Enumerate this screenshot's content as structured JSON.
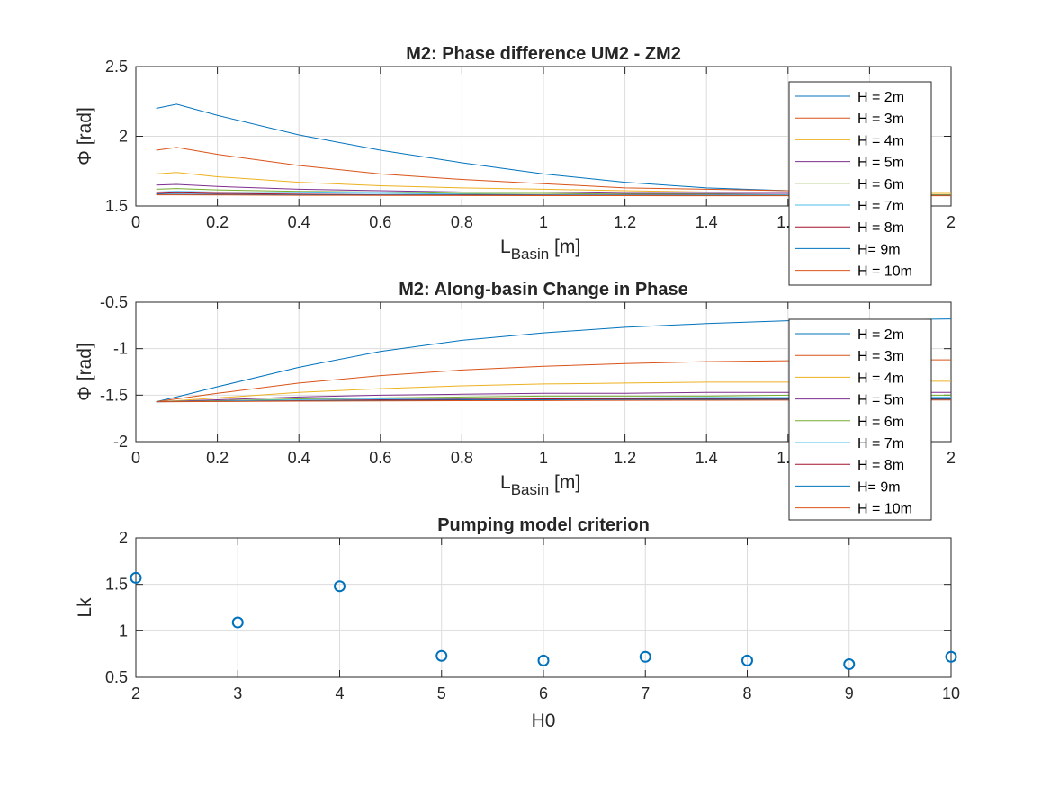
{
  "series_colors": [
    "#0072BD",
    "#D95319",
    "#EDB120",
    "#7E2F8E",
    "#77AC30",
    "#4DBEEE",
    "#A2142F",
    "#0072BD",
    "#D95319"
  ],
  "chart_data": [
    {
      "type": "line",
      "title": "M2: Phase difference UM2 - ZM2",
      "ylabel": "Φ [rad]",
      "xlabel_main": "L",
      "xlabel_sub": "Basin",
      "xlabel_tail": " [m]",
      "x_exponent_base": "10",
      "x_exponent": "4",
      "xlim": [
        0,
        2
      ],
      "ylim": [
        1.5,
        2.5
      ],
      "xticks": [
        "0",
        "0.2",
        "0.4",
        "0.6",
        "0.8",
        "1",
        "1.2",
        "1.4",
        "1.6",
        "1.8",
        "2"
      ],
      "yticks": [
        "1.5",
        "2",
        "2.5"
      ],
      "x": [
        0.05,
        0.1,
        0.2,
        0.4,
        0.6,
        0.8,
        1.0,
        1.2,
        1.4,
        1.6,
        1.8,
        2.0
      ],
      "legend_location": "right",
      "series": [
        {
          "name": "H = 2m",
          "values": [
            2.2,
            2.23,
            2.15,
            2.01,
            1.9,
            1.81,
            1.73,
            1.67,
            1.63,
            1.61,
            1.6,
            1.6
          ]
        },
        {
          "name": "H = 3m",
          "values": [
            1.9,
            1.92,
            1.87,
            1.79,
            1.73,
            1.69,
            1.66,
            1.63,
            1.62,
            1.61,
            1.6,
            1.6
          ]
        },
        {
          "name": "H = 4m",
          "values": [
            1.73,
            1.74,
            1.71,
            1.67,
            1.645,
            1.63,
            1.62,
            1.61,
            1.6,
            1.6,
            1.59,
            1.59
          ]
        },
        {
          "name": "H = 5m",
          "values": [
            1.65,
            1.655,
            1.64,
            1.62,
            1.61,
            1.6,
            1.6,
            1.59,
            1.59,
            1.59,
            1.58,
            1.58
          ]
        },
        {
          "name": "H = 6m",
          "values": [
            1.62,
            1.625,
            1.615,
            1.605,
            1.6,
            1.59,
            1.59,
            1.585,
            1.585,
            1.58,
            1.58,
            1.58
          ]
        },
        {
          "name": "H = 7m",
          "values": [
            1.6,
            1.605,
            1.6,
            1.595,
            1.59,
            1.585,
            1.58,
            1.58,
            1.58,
            1.58,
            1.575,
            1.575
          ]
        },
        {
          "name": "H = 8m",
          "values": [
            1.59,
            1.595,
            1.59,
            1.585,
            1.58,
            1.58,
            1.578,
            1.577,
            1.576,
            1.575,
            1.575,
            1.575
          ]
        },
        {
          "name": "H= 9m",
          "values": [
            1.585,
            1.585,
            1.583,
            1.58,
            1.578,
            1.577,
            1.576,
            1.575,
            1.575,
            1.574,
            1.574,
            1.574
          ]
        },
        {
          "name": "H = 10m",
          "values": [
            1.58,
            1.58,
            1.579,
            1.577,
            1.576,
            1.575,
            1.574,
            1.574,
            1.573,
            1.573,
            1.573,
            1.573
          ]
        }
      ]
    },
    {
      "type": "line",
      "title": "M2: Along-basin Change in Phase",
      "ylabel": "Φ [rad]",
      "xlabel_main": "L",
      "xlabel_sub": "Basin",
      "xlabel_tail": " [m]",
      "x_exponent_base": "10",
      "x_exponent": "4",
      "xlim": [
        0,
        2
      ],
      "ylim": [
        -2,
        -0.5
      ],
      "xticks": [
        "0",
        "0.2",
        "0.4",
        "0.6",
        "0.8",
        "1",
        "1.2",
        "1.4",
        "1.6",
        "1.8",
        "2"
      ],
      "yticks": [
        "-2",
        "-1.5",
        "-1",
        "-0.5"
      ],
      "x": [
        0.05,
        0.1,
        0.2,
        0.4,
        0.6,
        0.8,
        1.0,
        1.2,
        1.4,
        1.6,
        1.8,
        2.0
      ],
      "legend_location": "right",
      "series": [
        {
          "name": "H = 2m",
          "values": [
            -1.57,
            -1.52,
            -1.41,
            -1.2,
            -1.03,
            -0.91,
            -0.83,
            -0.77,
            -0.73,
            -0.7,
            -0.69,
            -0.68
          ]
        },
        {
          "name": "H = 3m",
          "values": [
            -1.57,
            -1.54,
            -1.48,
            -1.37,
            -1.29,
            -1.23,
            -1.19,
            -1.16,
            -1.14,
            -1.13,
            -1.12,
            -1.12
          ]
        },
        {
          "name": "H = 4m",
          "values": [
            -1.57,
            -1.56,
            -1.53,
            -1.47,
            -1.43,
            -1.4,
            -1.38,
            -1.37,
            -1.36,
            -1.36,
            -1.35,
            -1.35
          ]
        },
        {
          "name": "H = 5m",
          "values": [
            -1.57,
            -1.565,
            -1.55,
            -1.52,
            -1.5,
            -1.49,
            -1.48,
            -1.48,
            -1.47,
            -1.47,
            -1.47,
            -1.47
          ]
        },
        {
          "name": "H = 6m",
          "values": [
            -1.57,
            -1.567,
            -1.56,
            -1.54,
            -1.53,
            -1.52,
            -1.51,
            -1.51,
            -1.51,
            -1.5,
            -1.5,
            -1.5
          ]
        },
        {
          "name": "H = 7m",
          "values": [
            -1.57,
            -1.568,
            -1.563,
            -1.55,
            -1.54,
            -1.535,
            -1.53,
            -1.53,
            -1.525,
            -1.525,
            -1.52,
            -1.52
          ]
        },
        {
          "name": "H = 8m",
          "values": [
            -1.57,
            -1.569,
            -1.566,
            -1.56,
            -1.55,
            -1.545,
            -1.54,
            -1.54,
            -1.54,
            -1.535,
            -1.535,
            -1.535
          ]
        },
        {
          "name": "H= 9m",
          "values": [
            -1.57,
            -1.569,
            -1.567,
            -1.562,
            -1.557,
            -1.553,
            -1.55,
            -1.548,
            -1.546,
            -1.545,
            -1.544,
            -1.544
          ]
        },
        {
          "name": "H = 10m",
          "values": [
            -1.57,
            -1.57,
            -1.568,
            -1.565,
            -1.562,
            -1.56,
            -1.558,
            -1.556,
            -1.555,
            -1.554,
            -1.553,
            -1.553
          ]
        }
      ]
    },
    {
      "type": "scatter",
      "title": "Pumping model criterion",
      "xlabel": "H0",
      "ylabel": "Lk",
      "xlim": [
        2,
        10
      ],
      "ylim": [
        0.5,
        2
      ],
      "xticks": [
        "2",
        "3",
        "4",
        "5",
        "6",
        "7",
        "8",
        "9",
        "10"
      ],
      "yticks": [
        "0.5",
        "1",
        "1.5",
        "2"
      ],
      "x": [
        2,
        3,
        4,
        5,
        6,
        7,
        8,
        9,
        10
      ],
      "y": [
        1.57,
        1.09,
        1.48,
        0.73,
        0.68,
        0.72,
        0.68,
        0.64,
        0.72
      ]
    }
  ]
}
